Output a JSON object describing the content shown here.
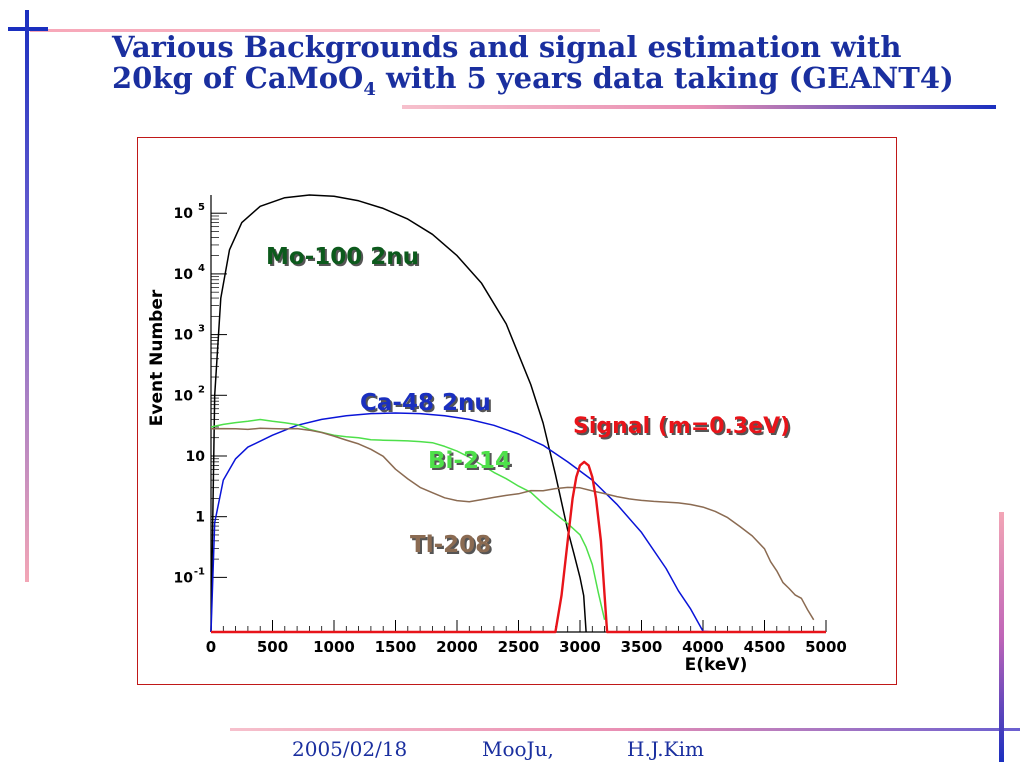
{
  "slide": {
    "title_line1": "Various Backgrounds and signal estimation with",
    "title_line2_prefix": "20kg of CaMoO",
    "title_line2_sub": "4",
    "title_line2_suffix": " with 5 years data taking (GEANT4)",
    "footer_date": "2005/02/18",
    "footer_venue": "MooJu,",
    "footer_author": "H.J.Kim"
  },
  "colors": {
    "title": "#1a2f9f",
    "frame": "#c01818",
    "mo100": "#000000",
    "ca48": "#0a14d8",
    "bi214": "#4ee04a",
    "tl208": "#8b6b52",
    "signal": "#e8141a"
  },
  "chart_data": {
    "type": "line",
    "xlabel": "E(keV)",
    "ylabel": "Event Number",
    "xlim": [
      0,
      5000
    ],
    "ylim_log10": [
      -1.9,
      5.3
    ],
    "y_scale": "log",
    "x_ticks": [
      0,
      500,
      1000,
      1500,
      2000,
      2500,
      3000,
      3500,
      4000,
      4500,
      5000
    ],
    "y_ticks": [
      {
        "exp": -1,
        "label": "10",
        "sup": "-1"
      },
      {
        "exp": 0,
        "label": "1",
        "sup": ""
      },
      {
        "exp": 1,
        "label": "10",
        "sup": ""
      },
      {
        "exp": 2,
        "label": "10",
        "sup": "2"
      },
      {
        "exp": 3,
        "label": "10",
        "sup": "3"
      },
      {
        "exp": 4,
        "label": "10",
        "sup": "4"
      },
      {
        "exp": 5,
        "label": "10",
        "sup": "5"
      }
    ],
    "series": [
      {
        "name": "Mo-100 2nu",
        "key": "mo100",
        "x": [
          0,
          30,
          80,
          150,
          250,
          400,
          600,
          800,
          1000,
          1200,
          1400,
          1600,
          1800,
          2000,
          2200,
          2400,
          2600,
          2700,
          2800,
          2900,
          2950,
          3000,
          3030,
          3050
        ],
        "y": [
          0.01,
          100,
          4000,
          25000,
          70000,
          130000,
          180000,
          200000,
          190000,
          160000,
          120000,
          80000,
          45000,
          20000,
          7000,
          1500,
          150,
          35,
          5,
          0.6,
          0.25,
          0.1,
          0.05,
          0.01
        ]
      },
      {
        "name": "Ca-48 2nu",
        "key": "ca48",
        "x": [
          0,
          30,
          100,
          200,
          300,
          500,
          700,
          900,
          1100,
          1300,
          1500,
          1700,
          1900,
          2100,
          2300,
          2500,
          2700,
          2900,
          3100,
          3300,
          3500,
          3700,
          3800,
          3900,
          4000,
          4100
        ],
        "y": [
          0.01,
          0.8,
          4,
          9,
          14,
          22,
          32,
          40,
          46,
          50,
          51,
          50,
          46,
          40,
          32,
          23,
          15,
          8,
          4,
          1.6,
          0.55,
          0.14,
          0.06,
          0.03,
          0.013,
          0.01
        ]
      },
      {
        "name": "Bi-214",
        "key": "bi214",
        "x": [
          0,
          100,
          200,
          300,
          400,
          500,
          600,
          700,
          800,
          900,
          1000,
          1100,
          1200,
          1300,
          1400,
          1500,
          1600,
          1700,
          1800,
          1900,
          2000,
          2100,
          2200,
          2300,
          2400,
          2500,
          2600,
          2700,
          2800,
          2900,
          3000,
          3050,
          3100,
          3150,
          3200
        ],
        "y": [
          30,
          32,
          33,
          34,
          36,
          34,
          33,
          32,
          28,
          26,
          24,
          23,
          22,
          20,
          19,
          18,
          17,
          16,
          15,
          13,
          11,
          9,
          7,
          5.5,
          4.5,
          3.5,
          2.8,
          1.8,
          1.2,
          0.8,
          0.5,
          0.3,
          0.15,
          0.05,
          0.02
        ]
      },
      {
        "name": "Tl-208",
        "key": "tl208",
        "x": [
          0,
          100,
          200,
          300,
          400,
          500,
          600,
          700,
          800,
          900,
          1000,
          1100,
          1200,
          1300,
          1400,
          1500,
          1600,
          1700,
          1800,
          1900,
          2000,
          2100,
          2200,
          2300,
          2400,
          2500,
          2600,
          2700,
          2800,
          2900,
          3000,
          3100,
          3200,
          3300,
          3400,
          3500,
          3600,
          3700,
          3800,
          3900,
          4000,
          4100,
          4200,
          4300,
          4400,
          4500,
          4550,
          4600,
          4650,
          4700,
          4750,
          4800,
          4850,
          4900
        ],
        "y": [
          28,
          30,
          32,
          33,
          35,
          34,
          32,
          30,
          26,
          22,
          18,
          15,
          13,
          11,
          9,
          6,
          4.5,
          3.5,
          3,
          2.5,
          2.2,
          2,
          2,
          2,
          2,
          2,
          2.2,
          2.2,
          2.5,
          2.8,
          3,
          2.9,
          2.8,
          2.6,
          2.4,
          2.2,
          2,
          1.8,
          1.6,
          1.4,
          1.2,
          1.0,
          0.8,
          0.6,
          0.45,
          0.3,
          0.2,
          0.15,
          0.1,
          0.08,
          0.06,
          0.05,
          0.03,
          0.02
        ]
      },
      {
        "name": "Signal (m=0.3eV)",
        "key": "signal",
        "x": [
          0,
          2800,
          2850,
          2900,
          2940,
          2970,
          3000,
          3034,
          3070,
          3100,
          3130,
          3170,
          3200,
          3220,
          3250,
          5000
        ],
        "y": [
          0.01,
          0.01,
          0.05,
          0.4,
          2,
          4.5,
          7,
          8,
          7,
          4.5,
          2,
          0.4,
          0.05,
          0.01,
          0.01,
          0.01
        ]
      }
    ],
    "annotations": [
      {
        "text": "Mo-100 2nu",
        "key": "mo100"
      },
      {
        "text": "Ca-48 2nu",
        "key": "ca48"
      },
      {
        "text": "Signal (m=0.3eV)",
        "key": "signal"
      },
      {
        "text": "Bi-214",
        "key": "bi214"
      },
      {
        "text": "Tl-208",
        "key": "tl208"
      }
    ]
  }
}
